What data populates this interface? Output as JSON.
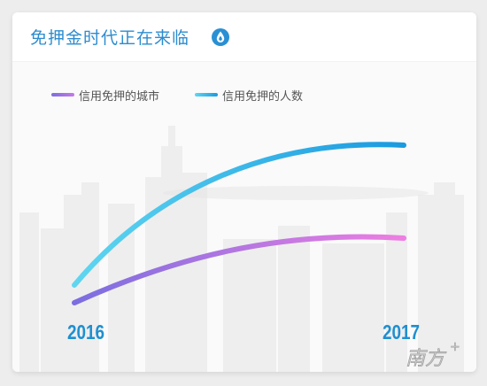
{
  "header": {
    "title": "免押金时代正在来临"
  },
  "watermark": {
    "text": "南方+"
  },
  "chart_data": {
    "type": "line",
    "x": [
      "2016",
      "2017"
    ],
    "series": [
      {
        "name": "信用免押的城市",
        "color_from": "#7b6ee0",
        "color_to": "#ee7ee2",
        "curve": "rising, then flattening"
      },
      {
        "name": "信用免押的人数",
        "color_from": "#5fd6f0",
        "color_to": "#1a9ae0",
        "curve": "rising steeply, then flattening"
      }
    ],
    "yaxis_visible": false,
    "grid": false,
    "legend": "top-left"
  }
}
